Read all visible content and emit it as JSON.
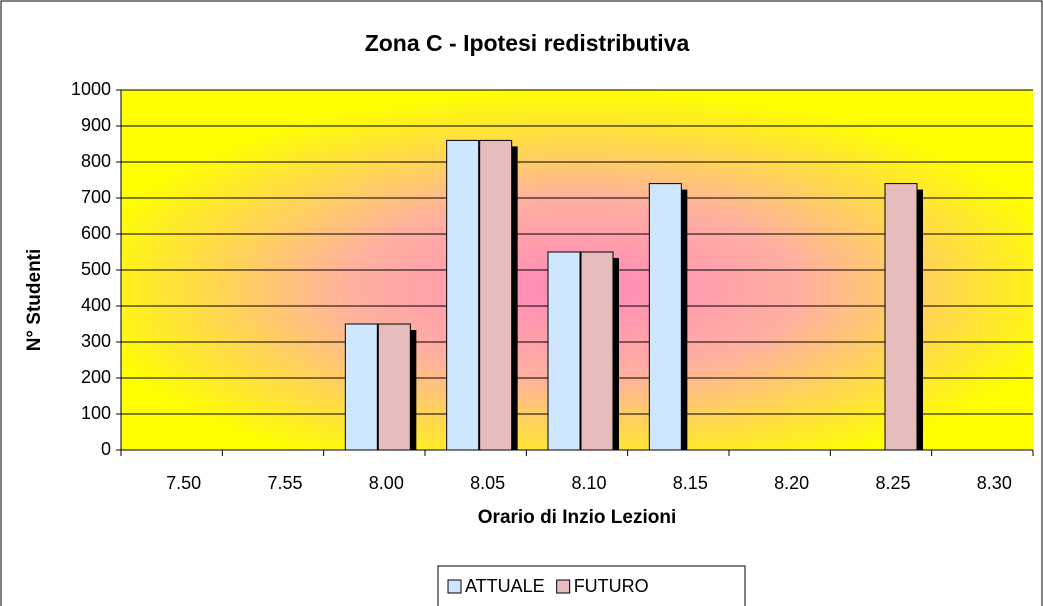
{
  "chart_data": {
    "type": "bar",
    "title": "Zona C - Ipotesi redistributiva",
    "x_label": "Orario di Inzio Lezioni",
    "y_label": "N° Studenti",
    "categories": [
      "7.50",
      "7.55",
      "8.00",
      "8.05",
      "8.10",
      "8.15",
      "8.20",
      "8.25",
      "8.30"
    ],
    "series": [
      {
        "name": "ATTUALE",
        "color": "#cfe6ff",
        "values": [
          0,
          0,
          350,
          860,
          550,
          740,
          0,
          0,
          0
        ]
      },
      {
        "name": "FUTURO",
        "color": "#e6bcbc",
        "values": [
          0,
          0,
          350,
          860,
          550,
          0,
          0,
          740,
          0
        ]
      }
    ],
    "ylim": [
      0,
      1000
    ],
    "yticks": [
      0,
      100,
      200,
      300,
      400,
      500,
      600,
      700,
      800,
      900,
      1000
    ],
    "grid": true,
    "legend": "bottom"
  }
}
